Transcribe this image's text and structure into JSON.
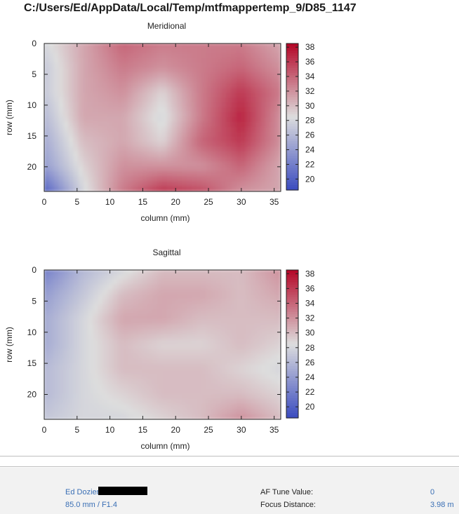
{
  "window": {
    "title": "C:/Users/Ed/AppData/Local/Temp/mtfmappertemp_9/D85_1147"
  },
  "colors": {
    "low": "#3b4cc0",
    "mid": "#dddddd",
    "high": "#b40426"
  },
  "chart_data": [
    {
      "type": "heatmap",
      "title": "Meridional",
      "xlabel": "column (mm)",
      "ylabel": "row (mm)",
      "xlim": [
        0,
        36
      ],
      "ylim": [
        0,
        24
      ],
      "y_inverted": true,
      "xticks": [
        0,
        5,
        10,
        15,
        20,
        25,
        30,
        35
      ],
      "yticks": [
        0,
        5,
        10,
        15,
        20
      ],
      "colorbar": {
        "min": 18.5,
        "max": 38.5,
        "ticks": [
          20,
          22,
          24,
          26,
          28,
          30,
          32,
          34,
          36,
          38
        ],
        "colormap": "coolwarm"
      },
      "x": [
        0,
        6,
        12,
        18,
        24,
        30,
        36
      ],
      "y": [
        0,
        4,
        8,
        12,
        16,
        20,
        24
      ],
      "z": [
        [
          28,
          31,
          34,
          33,
          33,
          33,
          31
        ],
        [
          27,
          31,
          33,
          32,
          33,
          34,
          32
        ],
        [
          27,
          31,
          32,
          29,
          33,
          36,
          33
        ],
        [
          26,
          31,
          31,
          28,
          33,
          37,
          32
        ],
        [
          25,
          30,
          31,
          29,
          34,
          36,
          32
        ],
        [
          24,
          29,
          32,
          32,
          32,
          34,
          31
        ],
        [
          20,
          28,
          33,
          36,
          35,
          32,
          31
        ]
      ]
    },
    {
      "type": "heatmap",
      "title": "Sagittal",
      "xlabel": "column (mm)",
      "ylabel": "row (mm)",
      "xlim": [
        0,
        36
      ],
      "ylim": [
        0,
        24
      ],
      "y_inverted": true,
      "xticks": [
        0,
        5,
        10,
        15,
        20,
        25,
        30,
        35
      ],
      "yticks": [
        0,
        5,
        10,
        15,
        20
      ],
      "colorbar": {
        "min": 18.5,
        "max": 38.5,
        "ticks": [
          20,
          22,
          24,
          26,
          28,
          30,
          32,
          34,
          36,
          38
        ],
        "colormap": "coolwarm"
      },
      "x": [
        0,
        6,
        12,
        18,
        24,
        30,
        36
      ],
      "y": [
        0,
        4,
        8,
        12,
        16,
        20,
        24
      ],
      "z": [
        [
          22,
          26,
          28,
          30,
          30,
          30,
          32
        ],
        [
          24,
          27,
          30,
          31,
          31,
          30,
          31
        ],
        [
          25,
          28,
          31,
          31,
          30,
          30,
          30
        ],
        [
          25,
          28,
          30,
          29,
          29,
          30,
          29
        ],
        [
          26,
          28,
          30,
          30,
          30,
          29,
          28
        ],
        [
          26,
          28,
          29,
          30,
          30,
          30,
          29
        ],
        [
          27,
          28,
          28,
          29,
          30,
          32,
          30
        ]
      ]
    }
  ],
  "footer": {
    "author": "Ed Dozier",
    "lens": "85.0 mm / F1.4",
    "af_label": "AF Tune Value:",
    "af_value": "0",
    "focus_label": "Focus Distance:",
    "focus_value": "3.98 m"
  }
}
